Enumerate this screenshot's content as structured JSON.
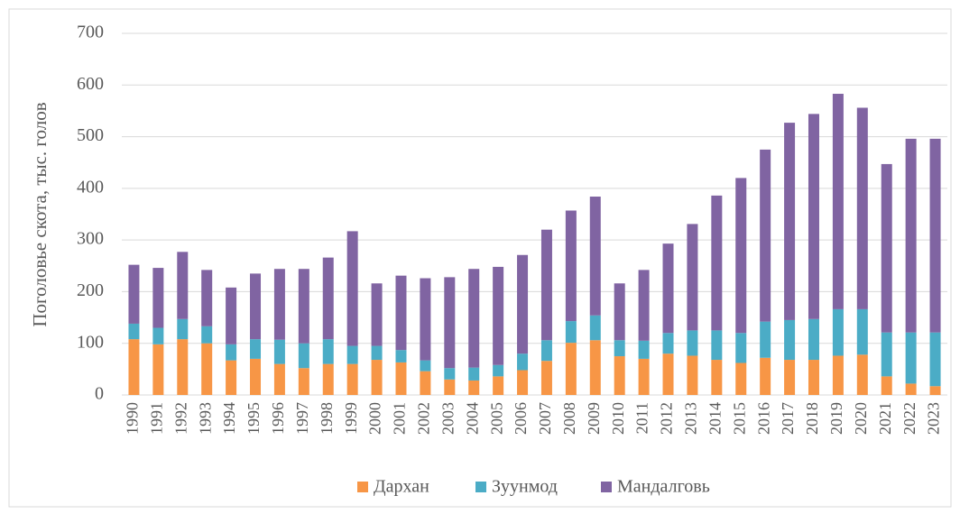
{
  "chart_data": {
    "type": "stacked_bar",
    "y_label": "Поголовье скота, тыс. голов",
    "categories": [
      "1990",
      "1991",
      "1992",
      "1993",
      "1994",
      "1995",
      "1996",
      "1997",
      "1998",
      "1999",
      "2000",
      "2001",
      "2002",
      "2003",
      "2004",
      "2005",
      "2006",
      "2007",
      "2008",
      "2009",
      "2010",
      "2011",
      "2012",
      "2013",
      "2014",
      "2015",
      "2016",
      "2017",
      "2018",
      "2019",
      "2020",
      "2021",
      "2022",
      "2023"
    ],
    "series": [
      {
        "name": "Дархан",
        "color": "#f79646",
        "values": [
          108,
          98,
          108,
          100,
          67,
          70,
          60,
          52,
          60,
          60,
          68,
          63,
          46,
          30,
          28,
          36,
          48,
          66,
          101,
          106,
          75,
          70,
          80,
          76,
          68,
          62,
          72,
          68,
          68,
          76,
          78,
          36,
          22,
          17
        ]
      },
      {
        "name": "Зуунмод",
        "color": "#4bacc6",
        "values": [
          30,
          32,
          39,
          33,
          31,
          38,
          47,
          48,
          48,
          35,
          27,
          24,
          21,
          22,
          25,
          22,
          32,
          40,
          42,
          48,
          31,
          35,
          40,
          49,
          57,
          58,
          70,
          77,
          79,
          90,
          88,
          85,
          99,
          104
        ]
      },
      {
        "name": "Мандалговь",
        "color": "#8064a2",
        "values": [
          114,
          116,
          130,
          109,
          110,
          127,
          137,
          144,
          158,
          222,
          121,
          144,
          159,
          176,
          191,
          190,
          191,
          214,
          214,
          230,
          110,
          137,
          173,
          206,
          261,
          300,
          333,
          382,
          397,
          417,
          390,
          326,
          375,
          375
        ]
      }
    ],
    "ylim": [
      0,
      700
    ],
    "yticks": [
      0,
      100,
      200,
      300,
      400,
      500,
      600,
      700
    ],
    "grid": true,
    "legend": "bottom"
  }
}
